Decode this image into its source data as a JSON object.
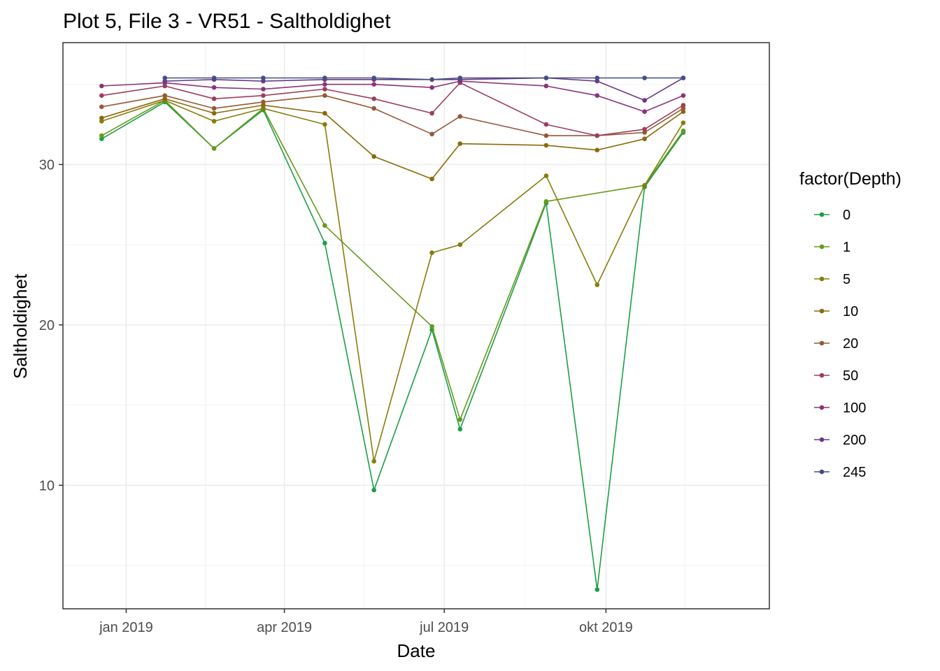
{
  "chart_data": {
    "type": "line",
    "title": "Plot 5, File 3 - VR51  -  Saltholdighet",
    "xlabel": "Date",
    "ylabel": "Saltholdighet",
    "x_ticks": [
      {
        "date": "2019-01-01",
        "label": "jan 2019"
      },
      {
        "date": "2019-04-01",
        "label": "apr 2019"
      },
      {
        "date": "2019-07-01",
        "label": "jul 2019"
      },
      {
        "date": "2019-10-01",
        "label": "okt 2019"
      }
    ],
    "y_ticks": [
      10,
      20,
      30
    ],
    "xlim": [
      "2018-11-26",
      "2020-01-02"
    ],
    "ylim": [
      2.3,
      37.6
    ],
    "grid": true,
    "legend": {
      "title": "factor(Depth)",
      "position": "right"
    },
    "dates": [
      "2018-12-18",
      "2019-01-23",
      "2019-02-20",
      "2019-03-20",
      "2019-04-24",
      "2019-05-22",
      "2019-06-24",
      "2019-07-10",
      "2019-08-28",
      "2019-09-26",
      "2019-10-23",
      "2019-11-14"
    ],
    "series": [
      {
        "name": "0",
        "color": "#1b9e47",
        "values": [
          31.6,
          33.9,
          31.0,
          33.4,
          25.1,
          9.7,
          19.7,
          13.5,
          27.6,
          3.5,
          28.6,
          32.0
        ]
      },
      {
        "name": "1",
        "color": "#669a1c",
        "values": [
          31.8,
          34.0,
          31.0,
          33.5,
          26.2,
          null,
          19.9,
          14.1,
          27.7,
          null,
          28.7,
          32.1
        ]
      },
      {
        "name": "5",
        "color": "#857e0b",
        "values": [
          32.7,
          34.0,
          32.7,
          33.5,
          32.5,
          11.5,
          24.5,
          25.0,
          29.3,
          22.5,
          28.7,
          32.6
        ]
      },
      {
        "name": "10",
        "color": "#8a6a0a",
        "values": [
          32.9,
          34.1,
          33.2,
          33.7,
          33.2,
          30.5,
          29.1,
          31.3,
          31.2,
          30.9,
          31.6,
          33.3
        ]
      },
      {
        "name": "20",
        "color": "#945a36",
        "values": [
          33.6,
          34.3,
          33.5,
          33.9,
          34.3,
          33.5,
          31.9,
          33.0,
          31.8,
          31.8,
          32.0,
          33.5
        ]
      },
      {
        "name": "50",
        "color": "#9b3f5b",
        "values": [
          34.3,
          34.9,
          34.1,
          34.3,
          34.7,
          34.1,
          33.2,
          35.1,
          32.5,
          31.8,
          32.2,
          33.7
        ]
      },
      {
        "name": "100",
        "color": "#8a3479",
        "values": [
          34.9,
          35.1,
          34.8,
          34.7,
          35.0,
          35.0,
          34.8,
          35.2,
          34.9,
          34.3,
          33.3,
          34.3
        ]
      },
      {
        "name": "200",
        "color": "#6a3a85",
        "values": [
          null,
          35.2,
          35.3,
          35.2,
          35.3,
          35.3,
          35.3,
          35.3,
          35.4,
          35.2,
          34.0,
          35.4
        ]
      },
      {
        "name": "245",
        "color": "#414e86",
        "values": [
          null,
          35.4,
          35.4,
          35.4,
          35.4,
          35.4,
          35.3,
          35.4,
          35.4,
          35.4,
          35.4,
          35.4
        ]
      }
    ]
  }
}
